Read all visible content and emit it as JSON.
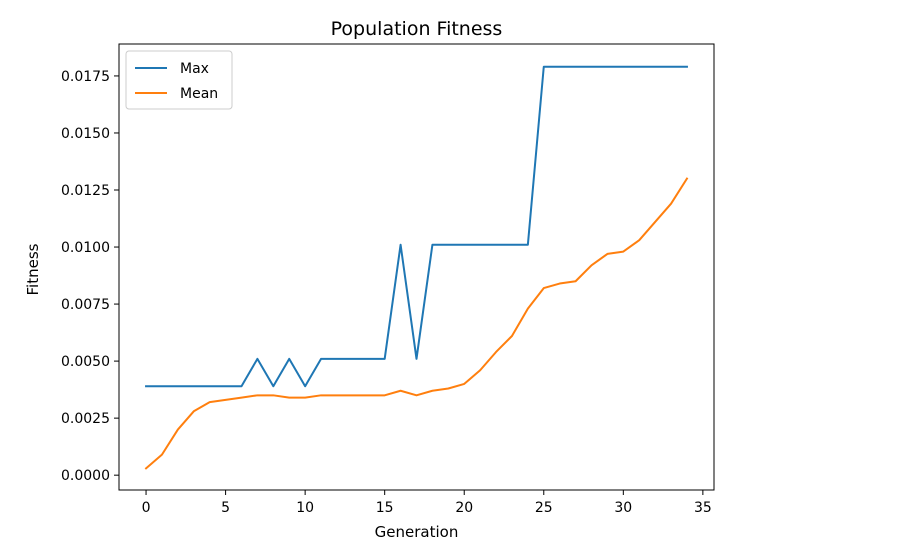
{
  "chart_data": {
    "type": "line",
    "title": "Population Fitness",
    "xlabel": "Generation",
    "ylabel": "Fitness",
    "xlim": [
      -1.7,
      35.7
    ],
    "ylim": [
      -0.00065,
      0.0189
    ],
    "xticks": [
      0,
      5,
      10,
      15,
      20,
      25,
      30,
      35
    ],
    "yticks": [
      0.0,
      0.0025,
      0.005,
      0.0075,
      0.01,
      0.0125,
      0.015,
      0.0175
    ],
    "ytick_labels": [
      "0.0000",
      "0.0025",
      "0.0050",
      "0.0075",
      "0.0100",
      "0.0125",
      "0.0150",
      "0.0175"
    ],
    "grid": false,
    "legend_position": "upper-left",
    "x": [
      0,
      1,
      2,
      3,
      4,
      5,
      6,
      7,
      8,
      9,
      10,
      11,
      12,
      13,
      14,
      15,
      16,
      17,
      18,
      19,
      20,
      21,
      22,
      23,
      24,
      25,
      26,
      27,
      28,
      29,
      30,
      31,
      32,
      33,
      34
    ],
    "series": [
      {
        "name": "Max",
        "color": "#1f77b4",
        "values": [
          0.0039,
          0.0039,
          0.0039,
          0.0039,
          0.0039,
          0.0039,
          0.0039,
          0.0051,
          0.0039,
          0.0051,
          0.0039,
          0.0051,
          0.0051,
          0.0051,
          0.0051,
          0.0051,
          0.0101,
          0.0051,
          0.0101,
          0.0101,
          0.0101,
          0.0101,
          0.0101,
          0.0101,
          0.0101,
          0.0179,
          0.0179,
          0.0179,
          0.0179,
          0.0179,
          0.0179,
          0.0179,
          0.0179,
          0.0179,
          0.0179
        ]
      },
      {
        "name": "Mean",
        "color": "#ff7f0e",
        "values": [
          0.0003,
          0.0009,
          0.002,
          0.0028,
          0.0032,
          0.0033,
          0.0034,
          0.0035,
          0.0035,
          0.0034,
          0.0034,
          0.0035,
          0.0035,
          0.0035,
          0.0035,
          0.0035,
          0.0037,
          0.0035,
          0.0037,
          0.0038,
          0.004,
          0.0046,
          0.0054,
          0.0061,
          0.0073,
          0.0082,
          0.0084,
          0.0085,
          0.0092,
          0.0097,
          0.0098,
          0.0103,
          0.0111,
          0.0119,
          0.013
        ]
      }
    ]
  }
}
